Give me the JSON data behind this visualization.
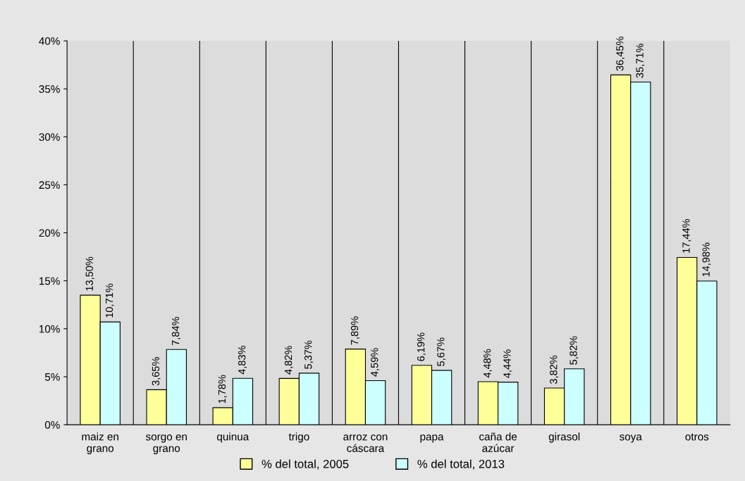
{
  "chart_data": {
    "type": "bar",
    "categories": [
      "maiz en\ngrano",
      "sorgo en\ngrano",
      "quinua",
      "trigo",
      "arroz con\ncáscara",
      "papa",
      "caña de\nazúcar",
      "girasol",
      "soya",
      "otros"
    ],
    "series": [
      {
        "name": "% del total, 2005",
        "color": "#ffff99",
        "values": [
          13.5,
          3.65,
          1.78,
          4.82,
          7.89,
          6.19,
          4.48,
          3.82,
          36.45,
          17.44
        ],
        "value_labels": [
          "13,50%",
          "3,65%",
          "1,78%",
          "4,82%",
          "7,89%",
          "6,19%",
          "4,48%",
          "3,82%",
          "36,45%",
          "17,44%"
        ]
      },
      {
        "name": "% del total, 2013",
        "color": "#ccffff",
        "values": [
          10.71,
          7.84,
          4.83,
          5.37,
          4.59,
          5.67,
          4.44,
          5.82,
          35.71,
          14.98
        ],
        "value_labels": [
          "10,71%",
          "7,84%",
          "4,83%",
          "5,37%",
          "4,59%",
          "5,67%",
          "4,44%",
          "5,82%",
          "35,71%",
          "14,98%"
        ]
      }
    ],
    "ylim": [
      0,
      40
    ],
    "yticks": [
      {
        "value": 0,
        "label": "0%"
      },
      {
        "value": 5,
        "label": "5%"
      },
      {
        "value": 10,
        "label": "10%"
      },
      {
        "value": 15,
        "label": "15%"
      },
      {
        "value": 20,
        "label": "20%"
      },
      {
        "value": 25,
        "label": "25%"
      },
      {
        "value": 30,
        "label": "30%"
      },
      {
        "value": 35,
        "label": "35%"
      },
      {
        "value": 40,
        "label": "40%"
      }
    ],
    "grid": "x",
    "legend": "bottom"
  }
}
